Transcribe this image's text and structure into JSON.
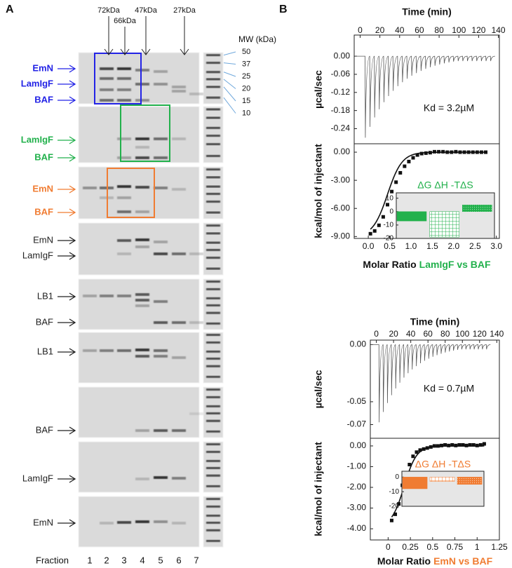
{
  "panel_a": {
    "label": "A",
    "kda_markers": [
      "72kDa",
      "66kDa",
      "47kDa",
      "27kDa"
    ],
    "mw_title": "MW (kDa)",
    "mw_values": [
      "50",
      "37",
      "25",
      "20",
      "15",
      "10"
    ],
    "gels": [
      {
        "labels": [
          "EmN",
          "LamIgF",
          "BAF"
        ],
        "color": "#2323e6"
      },
      {
        "labels": [
          "LamIgF",
          "BAF"
        ],
        "color": "#22b14c"
      },
      {
        "labels": [
          "EmN",
          "BAF"
        ],
        "color": "#f07c32"
      },
      {
        "labels": [
          "EmN",
          "LamIgF"
        ],
        "color": "#222222"
      },
      {
        "labels": [
          "LB1",
          "BAF"
        ],
        "color": "#222222"
      },
      {
        "labels": [
          "LB1"
        ],
        "color": "#222222"
      },
      {
        "labels": [
          "BAF"
        ],
        "color": "#222222"
      },
      {
        "labels": [
          "LamIgF"
        ],
        "color": "#222222"
      },
      {
        "labels": [
          "EmN"
        ],
        "color": "#222222"
      }
    ],
    "fraction_label": "Fraction",
    "fractions": [
      "1",
      "2",
      "3",
      "4",
      "5",
      "6",
      "7"
    ]
  },
  "panel_b": {
    "label": "B",
    "plots": [
      {
        "color": "#22b14c",
        "time_title": "Time (min)",
        "time_lim": [
          -6,
          141
        ],
        "time_ticks": [
          0,
          20,
          40,
          60,
          80,
          100,
          120,
          140
        ],
        "power_title": "µcal/sec",
        "power_lim": [
          -0.29,
          0.07
        ],
        "power_ticks": [
          {
            "value": 0,
            "label": "0.00"
          },
          {
            "value": -0.06,
            "label": "-0.06"
          },
          {
            "value": -0.12,
            "label": "-0.12"
          },
          {
            "value": -0.18,
            "label": "-0.18"
          },
          {
            "value": -0.24,
            "label": "-0.24"
          }
        ],
        "kd": "Kd = 3.2µM",
        "heat_title": "kcal/mol of injectant",
        "heat_lim": [
          -9.2,
          0.9
        ],
        "heat_ticks": [
          {
            "value": 0,
            "label": "0.00"
          },
          {
            "value": -3,
            "label": "-3.00"
          },
          {
            "value": -6,
            "label": "-6.00"
          },
          {
            "value": -9,
            "label": "-9.00"
          }
        ],
        "ratio_title": "Molar Ratio",
        "ratio_pair": "LamIgF vs BAF",
        "ratio_lim": [
          -0.33,
          3.07
        ],
        "ratio_ticks": [
          {
            "value": 0,
            "label": "0.0"
          },
          {
            "value": 0.5,
            "label": "0.5"
          },
          {
            "value": 1,
            "label": "1.0"
          },
          {
            "value": 1.5,
            "label": "1.5"
          },
          {
            "value": 2,
            "label": "2.0"
          },
          {
            "value": 2.5,
            "label": "2.5"
          },
          {
            "value": 3,
            "label": "3.0"
          }
        ],
        "isotherm": {
          "x": [
            0.05,
            0.15,
            0.25,
            0.35,
            0.45,
            0.55,
            0.65,
            0.75,
            0.85,
            0.95,
            1.05,
            1.15,
            1.25,
            1.35,
            1.45,
            1.55,
            1.65,
            1.75,
            1.85,
            1.95,
            2.05,
            2.15,
            2.25,
            2.35,
            2.45,
            2.55,
            2.65,
            2.75
          ],
          "y": [
            -8.7,
            -8.4,
            -7.8,
            -6.9,
            -5.6,
            -4.2,
            -3.2,
            -2.2,
            -1.5,
            -1.0,
            -0.6,
            -0.3,
            -0.15,
            -0.1,
            -0.05,
            0.05,
            0.05,
            0.05,
            0.0,
            0.0,
            0.05,
            0.0,
            0.0,
            0.0,
            0.0,
            0.0,
            0.0,
            0.0
          ]
        },
        "inset": {
          "title": "ΔG ΔH -TΔS",
          "lim": [
            -20,
            14
          ],
          "ticks": [
            10,
            0,
            -10,
            -20
          ],
          "values": [
            -7,
            -19,
            5
          ]
        }
      },
      {
        "color": "#f07c32",
        "time_title": "Time (min)",
        "time_lim": [
          -7,
          143
        ],
        "time_ticks": [
          0,
          20,
          40,
          60,
          80,
          100,
          120,
          140
        ],
        "power_title": "µcal/sec",
        "power_lim": [
          -0.082,
          0.004
        ],
        "power_ticks": [
          {
            "value": 0,
            "label": "0.00"
          },
          {
            "value": -0.05,
            "label": "-0.05"
          },
          {
            "value": -0.07,
            "label": "-0.07"
          }
        ],
        "kd": "Kd = 0.7µM",
        "heat_title": "kcal/mol of injectant",
        "heat_lim": [
          -4.54,
          0.37
        ],
        "heat_ticks": [
          {
            "value": 0,
            "label": "0.00"
          },
          {
            "value": -1,
            "label": "-1.00"
          },
          {
            "value": -2,
            "label": "-2.00"
          },
          {
            "value": -3,
            "label": "-3.00"
          },
          {
            "value": -4,
            "label": "-4.00"
          }
        ],
        "ratio_title": "Molar Ratio",
        "ratio_pair": "EmN vs BAF",
        "ratio_lim": [
          -0.2,
          1.25
        ],
        "ratio_ticks": [
          0,
          0.25,
          0.5,
          0.75,
          1,
          1.25
        ],
        "isotherm": {
          "x": [
            0.04,
            0.08,
            0.12,
            0.16,
            0.2,
            0.24,
            0.28,
            0.32,
            0.36,
            0.4,
            0.44,
            0.48,
            0.52,
            0.56,
            0.6,
            0.64,
            0.68,
            0.72,
            0.76,
            0.8,
            0.84,
            0.88,
            0.92,
            0.96,
            1.0,
            1.04,
            1.08
          ],
          "y": [
            -3.6,
            -3.3,
            -2.8,
            -1.9,
            -1.4,
            -0.9,
            -0.5,
            -0.3,
            -0.2,
            -0.15,
            -0.1,
            -0.05,
            0,
            0,
            0.02,
            0.05,
            0.02,
            0.05,
            0.02,
            0.05,
            0.05,
            0.02,
            0.05,
            0.05,
            0.02,
            0.05,
            0.1
          ]
        },
        "inset": {
          "title": "ΔG ΔH -TΔS",
          "lim": [
            -20,
            4
          ],
          "ticks": [
            0,
            -10,
            -20
          ],
          "values": [
            -8,
            -3,
            -5
          ]
        }
      }
    ]
  }
}
